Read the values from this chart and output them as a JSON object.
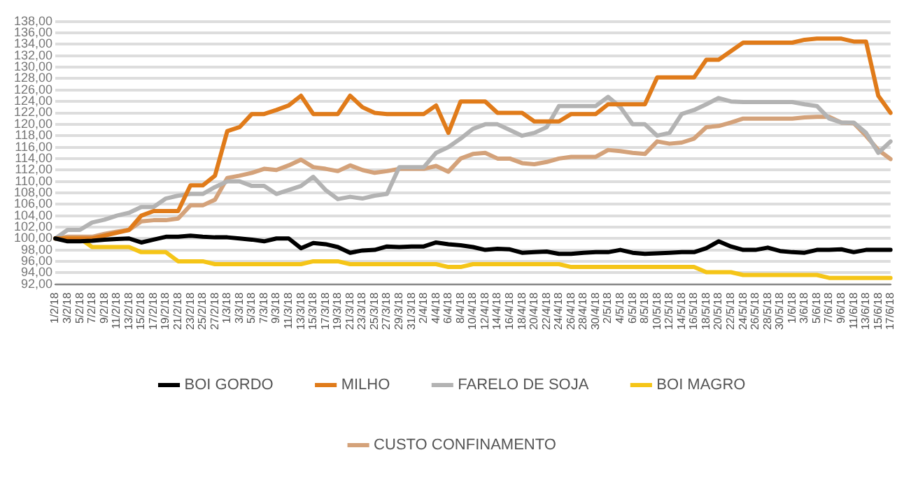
{
  "chart_data": {
    "type": "line",
    "categories": [
      "1/2/18",
      "3/2/18",
      "5/2/18",
      "7/2/18",
      "9/2/18",
      "11/2/18",
      "13/2/18",
      "15/2/18",
      "17/2/18",
      "19/2/18",
      "21/2/18",
      "23/2/18",
      "25/2/18",
      "27/2/18",
      "1/3/18",
      "3/3/18",
      "5/3/18",
      "7/3/18",
      "9/3/18",
      "11/3/18",
      "13/3/18",
      "15/3/18",
      "17/3/18",
      "19/3/18",
      "21/3/18",
      "23/3/18",
      "25/3/18",
      "27/3/18",
      "29/3/18",
      "31/3/18",
      "2/4/18",
      "4/4/18",
      "6/4/18",
      "8/4/18",
      "10/4/18",
      "12/4/18",
      "14/4/18",
      "16/4/18",
      "18/4/18",
      "20/4/18",
      "22/4/18",
      "24/4/18",
      "26/4/18",
      "28/4/18",
      "30/4/18",
      "2/5/18",
      "4/5/18",
      "6/5/18",
      "8/5/18",
      "10/5/18",
      "12/5/18",
      "14/5/18",
      "16/5/18",
      "18/5/18",
      "20/5/18",
      "22/5/18",
      "24/5/18",
      "26/5/18",
      "28/5/18",
      "30/5/18",
      "1/6/18",
      "3/6/18",
      "5/6/18",
      "7/6/18",
      "9/6/18",
      "11/6/18",
      "13/6/18",
      "15/6/18",
      "17/6/18"
    ],
    "series": [
      {
        "name": "BOI GORDO",
        "color": "#000000",
        "values": [
          100,
          99.5,
          99.5,
          99.6,
          99.8,
          99.9,
          100,
          99.3,
          99.8,
          100.3,
          100.3,
          100.5,
          100.3,
          100.2,
          100.2,
          100,
          99.8,
          99.5,
          100,
          100,
          98.3,
          99.2,
          99,
          98.5,
          97.5,
          97.9,
          98,
          98.6,
          98.5,
          98.6,
          98.6,
          99.3,
          99,
          98.8,
          98.5,
          98,
          98.2,
          98.1,
          97.5,
          97.6,
          97.7,
          97.3,
          97.3,
          97.5,
          97.6,
          97.6,
          98,
          97.5,
          97.3,
          97.4,
          97.5,
          97.6,
          97.6,
          98.3,
          99.5,
          98.6,
          98,
          98,
          98.4,
          97.8,
          97.6,
          97.5,
          98,
          98,
          98.1,
          97.6,
          98,
          98,
          98
        ]
      },
      {
        "name": "MILHO",
        "color": "#e07b1a",
        "values": [
          100,
          100,
          100,
          100,
          100.5,
          101,
          101.5,
          104,
          104.8,
          104.8,
          104.8,
          109.3,
          109.3,
          111,
          118.8,
          119.5,
          121.8,
          121.8,
          122.5,
          123.3,
          125,
          121.8,
          121.8,
          121.8,
          125,
          123,
          122,
          121.8,
          121.8,
          121.8,
          121.8,
          123.3,
          118.5,
          124,
          124,
          124,
          122,
          122,
          122,
          120.5,
          120.5,
          120.5,
          121.8,
          121.8,
          121.8,
          123.5,
          123.5,
          123.5,
          123.5,
          128.2,
          128.2,
          128.2,
          128.2,
          131.3,
          131.3,
          132.8,
          134.3,
          134.3,
          134.3,
          134.3,
          134.3,
          134.8,
          135,
          135,
          135,
          134.5,
          134.5,
          125,
          122
        ]
      },
      {
        "name": "FARELO DE SOJA",
        "color": "#b3b3b3",
        "values": [
          100,
          101.5,
          101.5,
          102.8,
          103.3,
          104,
          104.5,
          105.5,
          105.5,
          107,
          107.5,
          107.8,
          107.8,
          109,
          110,
          110,
          109.2,
          109.2,
          107.8,
          108.5,
          109.2,
          110.8,
          108.5,
          106.9,
          107.3,
          107,
          107.5,
          107.8,
          112.5,
          112.5,
          112.5,
          115,
          116,
          117.5,
          119.2,
          120,
          120,
          119,
          118,
          118.5,
          119.5,
          123.2,
          123.2,
          123.2,
          123.2,
          124.8,
          123,
          120,
          120,
          118,
          118.5,
          121.8,
          122.5,
          123.5,
          124.6,
          124,
          123.9,
          123.9,
          123.9,
          123.9,
          123.9,
          123.5,
          123.2,
          121,
          120.3,
          120.3,
          118.5,
          115,
          117
        ]
      },
      {
        "name": "BOI MAGRO",
        "color": "#f5c518",
        "values": [
          100,
          100,
          100,
          98.5,
          98.5,
          98.5,
          98.5,
          97.6,
          97.6,
          97.6,
          96,
          96,
          96,
          95.5,
          95.5,
          95.5,
          95.5,
          95.5,
          95.5,
          95.5,
          95.5,
          96,
          96,
          96,
          95.5,
          95.5,
          95.5,
          95.5,
          95.5,
          95.5,
          95.5,
          95.5,
          95,
          95,
          95.5,
          95.5,
          95.5,
          95.5,
          95.5,
          95.5,
          95.5,
          95.5,
          95,
          95,
          95,
          95,
          95,
          95,
          95,
          95,
          95,
          95,
          95,
          94.1,
          94.1,
          94.1,
          93.6,
          93.6,
          93.6,
          93.6,
          93.6,
          93.6,
          93.6,
          93.1,
          93.1,
          93.1,
          93.1,
          93.1,
          93.1
        ]
      },
      {
        "name": "CUSTO CONFINAMENTO",
        "color": "#d4a27a",
        "values": [
          100,
          100.3,
          100.3,
          100.3,
          100.8,
          101.2,
          101.5,
          103,
          103.2,
          103.2,
          103.5,
          105.8,
          105.8,
          106.8,
          110.6,
          111,
          111.5,
          112.2,
          112,
          112.8,
          113.8,
          112.5,
          112.2,
          111.8,
          112.8,
          112,
          111.5,
          111.8,
          112.2,
          112.2,
          112.2,
          112.7,
          111.7,
          114,
          114.8,
          115,
          114,
          114,
          113.2,
          113,
          113.4,
          114,
          114.3,
          114.3,
          114.3,
          115.5,
          115.3,
          115,
          114.8,
          117,
          116.6,
          116.8,
          117.5,
          119.5,
          119.7,
          120.3,
          121,
          121,
          121,
          121,
          121,
          121.2,
          121.3,
          121.3,
          120.3,
          120.2,
          118,
          115.5,
          113.9
        ]
      }
    ],
    "ylim": [
      92,
      138
    ],
    "yticks": [
      {
        "value": 92,
        "label": "92,00"
      },
      {
        "value": 94,
        "label": "94,00"
      },
      {
        "value": 96,
        "label": "96,00"
      },
      {
        "value": 98,
        "label": "98,00"
      },
      {
        "value": 100,
        "label": "100,00"
      },
      {
        "value": 102,
        "label": "102,00"
      },
      {
        "value": 104,
        "label": "104,00"
      },
      {
        "value": 106,
        "label": "106,00"
      },
      {
        "value": 108,
        "label": "108,00"
      },
      {
        "value": 110,
        "label": "110,00"
      },
      {
        "value": 112,
        "label": "112,00"
      },
      {
        "value": 114,
        "label": "114,00"
      },
      {
        "value": 116,
        "label": "116,00"
      },
      {
        "value": 118,
        "label": "118,00"
      },
      {
        "value": 120,
        "label": "120,00"
      },
      {
        "value": 122,
        "label": "122,00"
      },
      {
        "value": 124,
        "label": "124,00"
      },
      {
        "value": 126,
        "label": "126,00"
      },
      {
        "value": 128,
        "label": "128,00"
      },
      {
        "value": 130,
        "label": "130,00"
      },
      {
        "value": 132,
        "label": "132,00"
      },
      {
        "value": 134,
        "label": "134,00"
      },
      {
        "value": 136,
        "label": "136,00"
      },
      {
        "value": 138,
        "label": "138,00"
      }
    ],
    "grid": "y",
    "legend": "bottom",
    "marker": "none",
    "line_style": "solid"
  }
}
